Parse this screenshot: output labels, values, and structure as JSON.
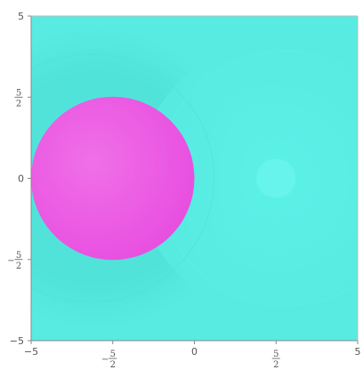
{
  "chart_data": {
    "type": "heatmap",
    "title": "",
    "xlabel": "",
    "ylabel": "",
    "xlim": [
      -5,
      5
    ],
    "ylim": [
      -5,
      5
    ],
    "grid": false,
    "x_ticks": [
      {
        "value": -5,
        "label": "−5"
      },
      {
        "value": -2.5,
        "numerator": "5",
        "denominator": "2",
        "sign": "−"
      },
      {
        "value": 0,
        "label": "0"
      },
      {
        "value": 2.5,
        "numerator": "5",
        "denominator": "2",
        "sign": ""
      },
      {
        "value": 5,
        "label": "5"
      }
    ],
    "y_ticks": [
      {
        "value": 5,
        "label": "5"
      },
      {
        "value": 2.5,
        "numerator": "5",
        "denominator": "2",
        "sign": ""
      },
      {
        "value": 0,
        "label": "0"
      },
      {
        "value": -2.5,
        "numerator": "5",
        "denominator": "2",
        "sign": "−"
      },
      {
        "value": -5,
        "label": "−5"
      }
    ],
    "background_color": "#57ebe1",
    "regions": [
      {
        "name": "left-dark-halo",
        "cx": -3.0,
        "cy": 0.0,
        "r": 4.6,
        "color": "#50e2d9"
      },
      {
        "name": "right-light-halo",
        "cx": 2.5,
        "cy": 0.0,
        "r": 4.2,
        "color": "#5df2e9"
      },
      {
        "name": "right-center-spot",
        "cx": 2.5,
        "cy": 0.0,
        "r": 0.6,
        "color": "#6bf5ef"
      }
    ],
    "sphere": {
      "cx": -2.5,
      "cy": 0.0,
      "r": 2.5,
      "color": "#e84fe0"
    }
  }
}
